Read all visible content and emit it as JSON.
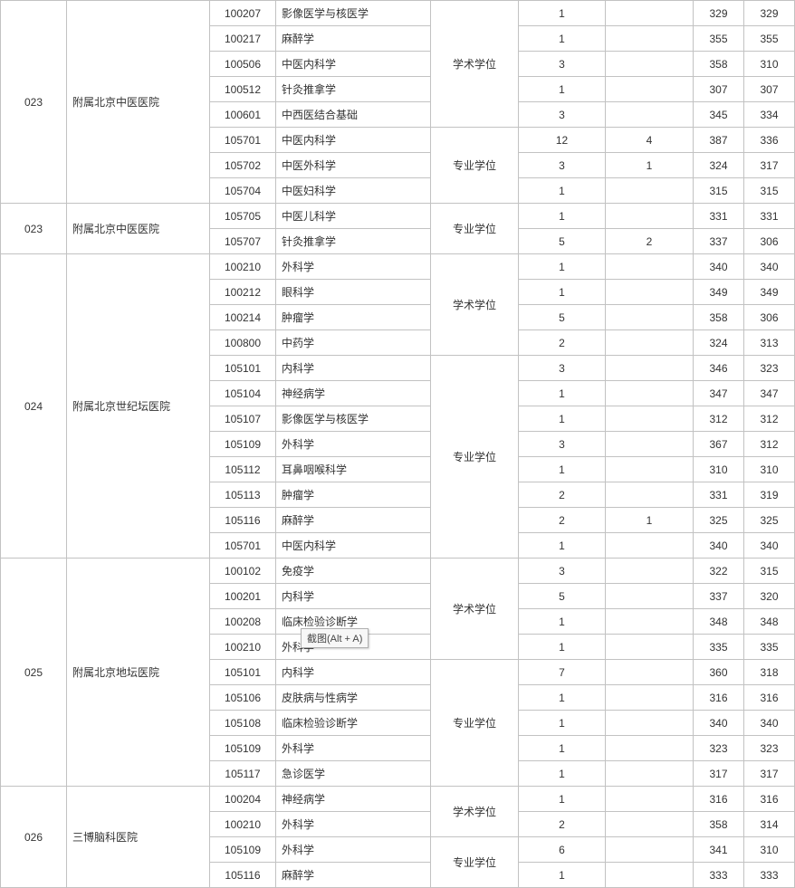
{
  "tooltip": "截图(Alt + A)",
  "groups": [
    {
      "code": "023",
      "inst": "附属北京中医医院",
      "degree_groups": [
        {
          "degree": "学术学位",
          "rows": [
            {
              "major": "100207",
              "mname": "影像医学与核医学",
              "n1": "1",
              "n2": "",
              "s1": "329",
              "s2": "329"
            },
            {
              "major": "100217",
              "mname": "麻醉学",
              "n1": "1",
              "n2": "",
              "s1": "355",
              "s2": "355"
            },
            {
              "major": "100506",
              "mname": "中医内科学",
              "n1": "3",
              "n2": "",
              "s1": "358",
              "s2": "310"
            },
            {
              "major": "100512",
              "mname": "针灸推拿学",
              "n1": "1",
              "n2": "",
              "s1": "307",
              "s2": "307"
            },
            {
              "major": "100601",
              "mname": "中西医结合基础",
              "n1": "3",
              "n2": "",
              "s1": "345",
              "s2": "334"
            }
          ]
        },
        {
          "degree": "专业学位",
          "rows": [
            {
              "major": "105701",
              "mname": "中医内科学",
              "n1": "12",
              "n2": "4",
              "s1": "387",
              "s2": "336"
            },
            {
              "major": "105702",
              "mname": "中医外科学",
              "n1": "3",
              "n2": "1",
              "s1": "324",
              "s2": "317"
            },
            {
              "major": "105704",
              "mname": "中医妇科学",
              "n1": "1",
              "n2": "",
              "s1": "315",
              "s2": "315"
            }
          ]
        }
      ]
    },
    {
      "code": "023",
      "inst": "附属北京中医医院",
      "degree_groups": [
        {
          "degree": "专业学位",
          "rows": [
            {
              "major": "105705",
              "mname": "中医儿科学",
              "n1": "1",
              "n2": "",
              "s1": "331",
              "s2": "331"
            },
            {
              "major": "105707",
              "mname": "针灸推拿学",
              "n1": "5",
              "n2": "2",
              "s1": "337",
              "s2": "306"
            }
          ]
        }
      ]
    },
    {
      "code": "024",
      "inst": "附属北京世纪坛医院",
      "degree_groups": [
        {
          "degree": "学术学位",
          "rows": [
            {
              "major": "100210",
              "mname": "外科学",
              "n1": "1",
              "n2": "",
              "s1": "340",
              "s2": "340"
            },
            {
              "major": "100212",
              "mname": "眼科学",
              "n1": "1",
              "n2": "",
              "s1": "349",
              "s2": "349"
            },
            {
              "major": "100214",
              "mname": "肿瘤学",
              "n1": "5",
              "n2": "",
              "s1": "358",
              "s2": "306"
            },
            {
              "major": "100800",
              "mname": "中药学",
              "n1": "2",
              "n2": "",
              "s1": "324",
              "s2": "313"
            }
          ]
        },
        {
          "degree": "专业学位",
          "rows": [
            {
              "major": "105101",
              "mname": "内科学",
              "n1": "3",
              "n2": "",
              "s1": "346",
              "s2": "323"
            },
            {
              "major": "105104",
              "mname": "神经病学",
              "n1": "1",
              "n2": "",
              "s1": "347",
              "s2": "347"
            },
            {
              "major": "105107",
              "mname": "影像医学与核医学",
              "n1": "1",
              "n2": "",
              "s1": "312",
              "s2": "312"
            },
            {
              "major": "105109",
              "mname": "外科学",
              "n1": "3",
              "n2": "",
              "s1": "367",
              "s2": "312"
            },
            {
              "major": "105112",
              "mname": "耳鼻咽喉科学",
              "n1": "1",
              "n2": "",
              "s1": "310",
              "s2": "310"
            },
            {
              "major": "105113",
              "mname": "肿瘤学",
              "n1": "2",
              "n2": "",
              "s1": "331",
              "s2": "319"
            },
            {
              "major": "105116",
              "mname": "麻醉学",
              "n1": "2",
              "n2": "1",
              "s1": "325",
              "s2": "325"
            },
            {
              "major": "105701",
              "mname": "中医内科学",
              "n1": "1",
              "n2": "",
              "s1": "340",
              "s2": "340"
            }
          ]
        }
      ]
    },
    {
      "code": "025",
      "inst": "附属北京地坛医院",
      "degree_groups": [
        {
          "degree": "学术学位",
          "rows": [
            {
              "major": "100102",
              "mname": "免疫学",
              "n1": "3",
              "n2": "",
              "s1": "322",
              "s2": "315"
            },
            {
              "major": "100201",
              "mname": "内科学",
              "n1": "5",
              "n2": "",
              "s1": "337",
              "s2": "320"
            },
            {
              "major": "100208",
              "mname": "临床检验诊断学",
              "n1": "1",
              "n2": "",
              "s1": "348",
              "s2": "348"
            },
            {
              "major": "100210",
              "mname": "外科学",
              "n1": "1",
              "n2": "",
              "s1": "335",
              "s2": "335"
            }
          ]
        },
        {
          "degree": "专业学位",
          "rows": [
            {
              "major": "105101",
              "mname": "内科学",
              "n1": "7",
              "n2": "",
              "s1": "360",
              "s2": "318"
            },
            {
              "major": "105106",
              "mname": "皮肤病与性病学",
              "n1": "1",
              "n2": "",
              "s1": "316",
              "s2": "316"
            },
            {
              "major": "105108",
              "mname": "临床检验诊断学",
              "n1": "1",
              "n2": "",
              "s1": "340",
              "s2": "340"
            },
            {
              "major": "105109",
              "mname": "外科学",
              "n1": "1",
              "n2": "",
              "s1": "323",
              "s2": "323"
            },
            {
              "major": "105117",
              "mname": "急诊医学",
              "n1": "1",
              "n2": "",
              "s1": "317",
              "s2": "317"
            }
          ]
        }
      ]
    },
    {
      "code": "026",
      "inst": "三博脑科医院",
      "degree_groups": [
        {
          "degree": "学术学位",
          "rows": [
            {
              "major": "100204",
              "mname": "神经病学",
              "n1": "1",
              "n2": "",
              "s1": "316",
              "s2": "316"
            },
            {
              "major": "100210",
              "mname": "外科学",
              "n1": "2",
              "n2": "",
              "s1": "358",
              "s2": "314"
            }
          ]
        },
        {
          "degree": "专业学位",
          "rows": [
            {
              "major": "105109",
              "mname": "外科学",
              "n1": "6",
              "n2": "",
              "s1": "341",
              "s2": "310"
            },
            {
              "major": "105116",
              "mname": "麻醉学",
              "n1": "1",
              "n2": "",
              "s1": "333",
              "s2": "333"
            }
          ]
        }
      ]
    }
  ]
}
